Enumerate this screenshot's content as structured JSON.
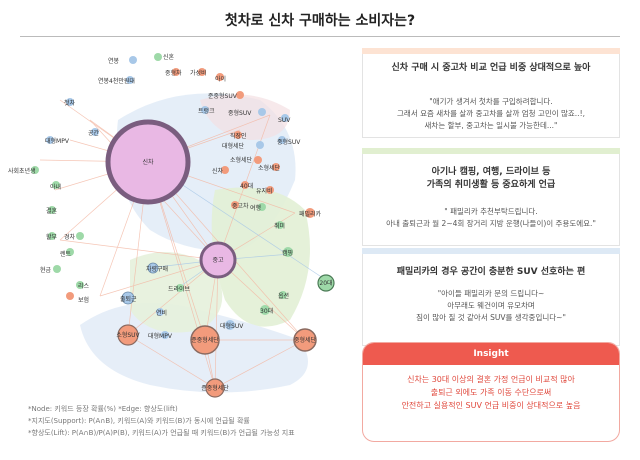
{
  "title": "첫차로 신차 구매하는 소비자는?",
  "graph": {
    "nodes": {
      "sincha": "신차",
      "jungo": "중고",
      "junggo_car": "중고차",
      "car_buy": "차량구매",
      "suv": "준중형SUV",
      "family": "패밀리카",
      "big_suv": "대형SUV",
      "mid_sedan": "준중형세단",
      "age20": "20대",
      "age30": "30대",
      "age40": "40대",
      "travel": "여행",
      "camping": "캠핑",
      "child": "아이",
      "wife": "아내",
      "drive": "드라이브",
      "commute": "출퇴근",
      "space": "공간",
      "trunk": "트렁크",
      "hobby": "취미",
      "suv_s": "SUV",
      "n1": "신혼",
      "n2": "연봉",
      "n3": "중형차",
      "n4": "가성비",
      "n5": "첫차",
      "n6": "연봉4천만원대",
      "n7": "직장인",
      "n8": "사회초년생",
      "n9": "소형SUV",
      "n10": "중형세단",
      "n11": "소형세단",
      "n12": "대형MPV",
      "n13": "경차",
      "n14": "대형세단",
      "n15": "중형SUV",
      "n16": "준중형세단",
      "n17": "할부",
      "n18": "현금",
      "n19": "리스",
      "n20": "렌트",
      "n21": "보험",
      "n22": "결혼",
      "n23": "연비",
      "n24": "옵션",
      "n25": "신차",
      "n26": "유지비",
      "n27": "소형세단",
      "n28": "중형SUV"
    }
  },
  "notes": [
    "*Node: 키워드 등장 확률(%) *Edge: 향상도(lift)",
    "*지지도(Support): P(A∩B), 키워드(A)와 키워드(B)가 동시에 언급될 확률",
    "*향상도(Lift): P(A∩B)/P(A)P(B), 키워드(A)가 언급될 때 키워드(B)가 언급될 가능성 지표"
  ],
  "cards": [
    {
      "head": "신차 구매 시 중고차 비교 언급 비중 상대적으로 높아",
      "body": [
        "\"애기가 생겨서 첫차를 구입하려합니다.",
        "그래서 요즘 새차를 살까 중고차를 살까 엄청 고민이 많죠..!,",
        "새차는 할부, 중고차는 일시불 가능한데...\""
      ]
    },
    {
      "head": [
        "아기나 캠핑, 여행, 드라이브 등",
        "가족의 취미생활 등 중요하게 언급"
      ],
      "body": [
        "\" 패밀리카 추천부탁드립니다.",
        "아내 출퇴근과 월 2~4회 장거리 지방 운행(나들이)이 주용도에요.\""
      ]
    },
    {
      "head": "패밀리카의 경우 공간이 충분한 SUV 선호하는 편",
      "body": [
        "\"아이들 패밀리카 문의 드립니다~",
        "아무래도 웨건이며 유모차며",
        "짐이 많아 질 것 같아서 SUV를 생각중입니다~\""
      ]
    }
  ],
  "insight": {
    "head": "Insight",
    "body": [
      "신차는 30대 이상의 결혼 가정 언급이 비교적 많아",
      "출퇴근 외에도 가족 이동 수단으로써",
      "안전하고 실용적인 SUV 언급 비중이 상대적으로 높음"
    ]
  },
  "colors": {
    "pink": "#e9b8e4",
    "ring": "#7a5d7f",
    "orange": "#f29b7c",
    "green": "#9ed9a8",
    "blue": "#a8c8e8",
    "accent": "#ee5a4f"
  }
}
